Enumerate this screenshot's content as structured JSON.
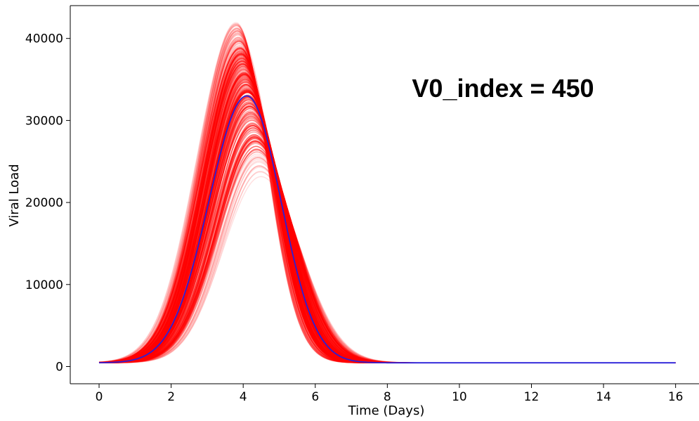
{
  "chart_data": {
    "type": "line",
    "xlabel": "Time (Days)",
    "ylabel": "Viral Load",
    "annotation": "V0_index = 450",
    "xlim": [
      -0.8,
      16.65
    ],
    "ylim": [
      -2100,
      44000
    ],
    "xticks": [
      0,
      2,
      4,
      6,
      8,
      10,
      12,
      14,
      16
    ],
    "yticks": [
      0,
      10000,
      20000,
      30000,
      40000
    ],
    "grid": false,
    "colors": {
      "mean": "#2a1fd8",
      "ensemble": "#ff0000"
    },
    "model": {
      "base": 450,
      "peak_time": 4.1,
      "peak_value": 33000,
      "rise_sigma": 1.05,
      "fall_sigma": 0.95
    },
    "series": [
      {
        "x": [
          0,
          0.5,
          1,
          1.5,
          2,
          2.5,
          3,
          3.5,
          4,
          4.1,
          4.5,
          5,
          5.5,
          6,
          6.5,
          7,
          7.5,
          8,
          8.5,
          9,
          10,
          11,
          12,
          14,
          16
        ],
        "y": [
          500,
          950,
          1900,
          3800,
          7000,
          12500,
          19800,
          27500,
          32800,
          33000,
          30700,
          21000,
          13500,
          7200,
          3500,
          1550,
          650,
          260,
          100,
          40,
          10,
          5,
          3,
          2,
          2
        ]
      }
    ],
    "ensemble": {
      "count": 260,
      "peak_value_range": [
        23000,
        42000
      ],
      "peak_time_range": [
        3.8,
        4.5
      ]
    }
  }
}
